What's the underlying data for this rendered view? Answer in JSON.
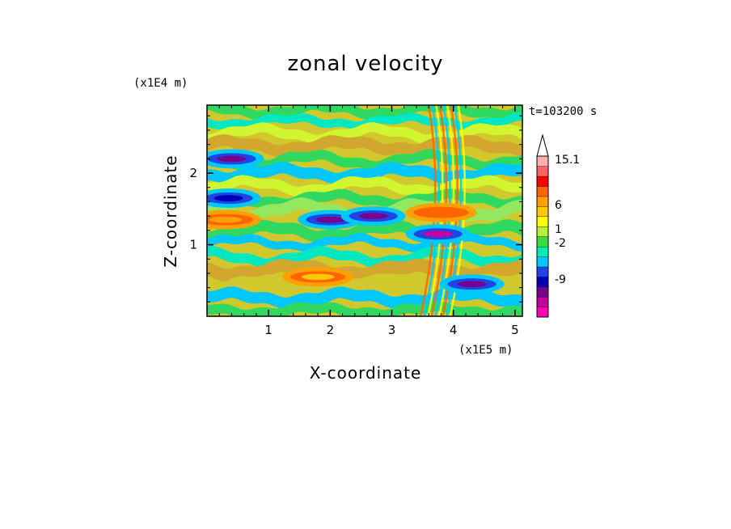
{
  "chart_data": {
    "type": "heatmap",
    "title": "zonal velocity",
    "xlabel": "X-coordinate",
    "ylabel": "Z-coordinate",
    "x_unit": "(x1E5 m)",
    "y_unit": "(x1E4 m)",
    "time_label": "t=103200 s",
    "xlim": [
      0,
      5.12
    ],
    "ylim": [
      0,
      2.95
    ],
    "x_ticks": [
      "1",
      "2",
      "3",
      "4",
      "5"
    ],
    "y_ticks": [
      "1",
      "2"
    ],
    "colorbar": {
      "levels": [
        "-9",
        "-2",
        "1",
        "6",
        "15.1"
      ],
      "colors": [
        "#ff00b4",
        "#c800a0",
        "#78008c",
        "#0000b4",
        "#1e46e6",
        "#00c8ff",
        "#00f0b4",
        "#3cdc3c",
        "#b4f03c",
        "#ffff00",
        "#ffc800",
        "#ffa000",
        "#ff6400",
        "#ff0000",
        "#ff6464",
        "#ffafaf"
      ]
    },
    "features": [
      {
        "x": 0.4,
        "z": 2.2,
        "value": -10
      },
      {
        "x": 0.35,
        "z": 1.65,
        "value": -8
      },
      {
        "x": 2.0,
        "z": 1.35,
        "value": -9
      },
      {
        "x": 2.7,
        "z": 1.4,
        "value": -10
      },
      {
        "x": 3.75,
        "z": 1.15,
        "value": -11
      },
      {
        "x": 4.3,
        "z": 0.45,
        "value": -10
      },
      {
        "x": 1.8,
        "z": 0.55,
        "value": 6
      },
      {
        "x": 0.3,
        "z": 1.35,
        "value": 7
      },
      {
        "x": 3.8,
        "z": 1.45,
        "value": 10
      }
    ]
  }
}
